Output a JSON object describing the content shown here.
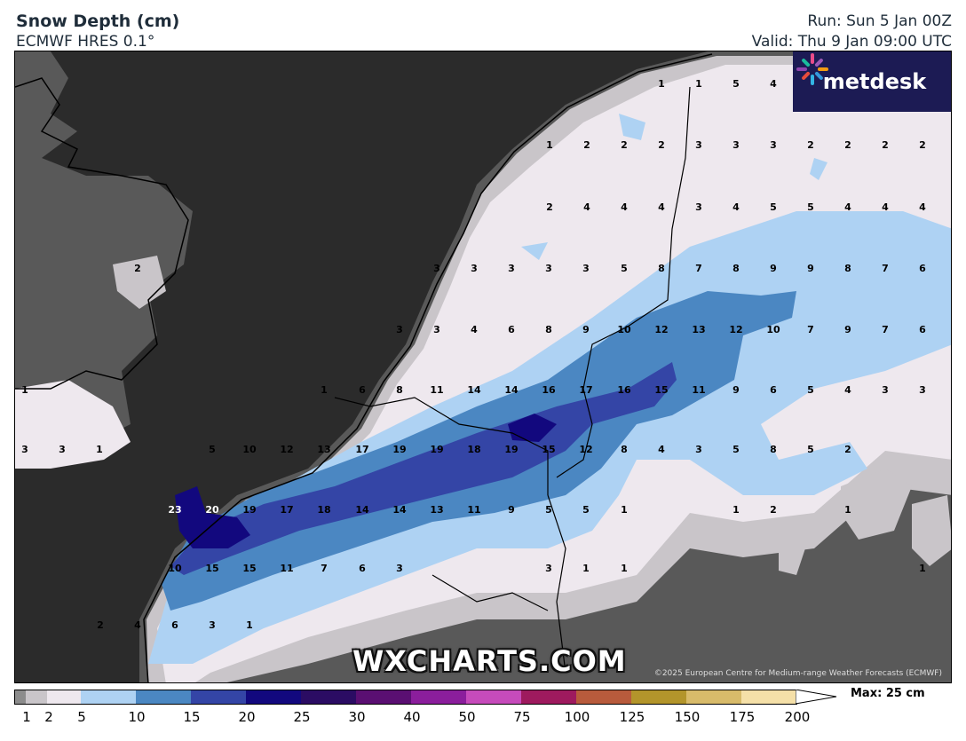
{
  "header": {
    "title": "Snow Depth (cm)",
    "model": "ECMWF HRES 0.1°",
    "run": "Run: Sun 5 Jan 00Z",
    "valid": "Valid: Thu 9 Jan 09:00 UTC"
  },
  "logo_text": "metdesk",
  "watermark": "WXCHARTS.COM",
  "copyright": "©2025 European Centre for Medium-range Weather Forecasts (ECMWF)",
  "legend": {
    "max_label": "Max: 25 cm",
    "ticks": [
      "1",
      "2",
      "5",
      "10",
      "15",
      "20",
      "25",
      "30",
      "40",
      "50",
      "75",
      "100",
      "125",
      "150",
      "175",
      "200"
    ],
    "colors": [
      "#8c8c8c",
      "#c9c5c9",
      "#eee8ee",
      "#aed2f3",
      "#4b87c2",
      "#3445a6",
      "#12087e",
      "#2b0c63",
      "#5a0f72",
      "#8b1e9c",
      "#c64bbb",
      "#9e1a5e",
      "#b85b3c",
      "#b3952b",
      "#d8bb6a",
      "#f5e0a8"
    ]
  },
  "colors": {
    "sea": "#2b2b2b",
    "land_bare": "#595959",
    "land_dark": "#a8a5a8",
    "snow_1": "#c9c5c9",
    "snow_2": "#eee8ee",
    "snow_5": "#aed2f3",
    "snow_10": "#4b87c2",
    "snow_15": "#3445a6",
    "snow_20": "#12087e"
  },
  "values": {
    "r1": [
      "1",
      "1",
      "5",
      "4"
    ],
    "r2": [
      "1",
      "2",
      "2",
      "2",
      "3",
      "3",
      "3",
      "2",
      "2",
      "2",
      "2"
    ],
    "r3": [
      "2",
      "4",
      "4",
      "4",
      "3",
      "4",
      "5",
      "5",
      "4",
      "4",
      "4"
    ],
    "r4": [
      "2",
      "3",
      "3",
      "3",
      "3",
      "3",
      "5",
      "8",
      "7",
      "8",
      "9",
      "9",
      "8",
      "7",
      "6"
    ],
    "r5": [
      "3",
      "3",
      "4",
      "6",
      "8",
      "9",
      "10",
      "12",
      "13",
      "12",
      "10",
      "7",
      "9",
      "7",
      "6"
    ],
    "r6": [
      "1",
      "1",
      "6",
      "8",
      "11",
      "14",
      "14",
      "16",
      "17",
      "16",
      "15",
      "11",
      "9",
      "6",
      "5",
      "4",
      "3",
      "3"
    ],
    "r7": [
      "3",
      "3",
      "1",
      "5",
      "10",
      "12",
      "13",
      "17",
      "19",
      "19",
      "18",
      "19",
      "15",
      "12",
      "8",
      "4",
      "3",
      "5",
      "8",
      "5",
      "2"
    ],
    "r8": [
      "23",
      "20",
      "19",
      "17",
      "18",
      "14",
      "14",
      "13",
      "11",
      "9",
      "5",
      "5",
      "1",
      "1",
      "2",
      "1"
    ],
    "r9": [
      "10",
      "15",
      "15",
      "11",
      "7",
      "6",
      "3",
      "3",
      "1",
      "1",
      "1"
    ],
    "r10": [
      "2",
      "4",
      "6",
      "3",
      "1"
    ]
  }
}
